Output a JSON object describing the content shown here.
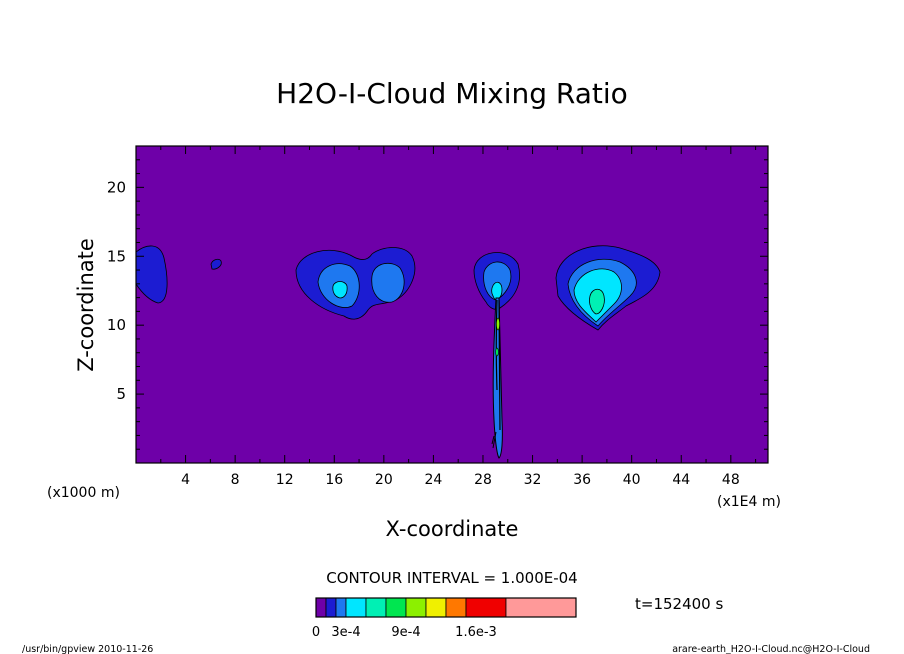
{
  "chart_data": {
    "type": "contour",
    "title": "H2O-I-Cloud Mixing Ratio",
    "xlabel": "X-coordinate",
    "ylabel": "Z-coordinate",
    "x_unit_label": "(x1E4 m)",
    "y_unit_label": "(x1000 m)",
    "xlim": [
      0,
      51
    ],
    "ylim": [
      0,
      23
    ],
    "x_ticks": [
      4,
      8,
      12,
      16,
      20,
      24,
      28,
      32,
      36,
      40,
      44,
      48
    ],
    "y_ticks": [
      5,
      10,
      15,
      20
    ],
    "background_color": "#6e00a8",
    "contour_interval_label": "CONTOUR INTERVAL = 1.000E-04",
    "time_label": "t=152400 s",
    "legend": {
      "colors": [
        "#6e00a8",
        "#1c1cd2",
        "#1e78f0",
        "#00e6ff",
        "#00f0b4",
        "#00e650",
        "#8cf000",
        "#f0f000",
        "#ff7800",
        "#f00000",
        "#ff9999"
      ],
      "tick_labels": [
        "0",
        "3e-4",
        "9e-4",
        "1.6e-3"
      ]
    },
    "features": [
      {
        "name": "left-edge-cloud",
        "x": 1.2,
        "z": 14.2,
        "max": 0.0002
      },
      {
        "name": "small-blob",
        "x": 6.5,
        "z": 14.4,
        "max": 0.0001
      },
      {
        "name": "double-cloud-left",
        "x": 17,
        "z": 12.6,
        "max": 0.0003
      },
      {
        "name": "double-cloud-right",
        "x": 20.5,
        "z": 13.0,
        "max": 0.0003
      },
      {
        "name": "central-cloud",
        "x": 29.2,
        "z": 12.8,
        "max": 0.001
      },
      {
        "name": "right-cloud",
        "x": 37.3,
        "z": 12.0,
        "max": 0.0005
      }
    ]
  },
  "footer": {
    "left": "/usr/bin/gpview  2010-11-26",
    "right": "arare-earth_H2O-I-Cloud.nc@H2O-I-Cloud"
  }
}
